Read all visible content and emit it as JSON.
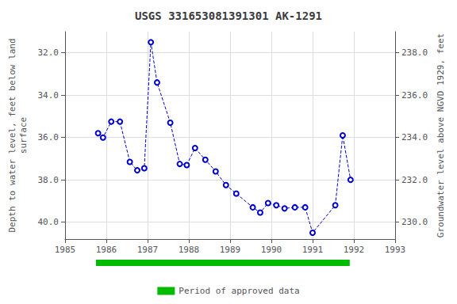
{
  "chart_data": {
    "type": "line",
    "title": "USGS 331653081391301 AK-1291",
    "ylabel": "Depth to water level, feet below land\nsurface",
    "y2label": "Groundwater level above NGVD 1929, feet",
    "x": [
      1985.8,
      1985.92,
      1986.12,
      1986.33,
      1986.57,
      1986.75,
      1986.92,
      1987.08,
      1987.23,
      1987.55,
      1987.78,
      1987.95,
      1988.15,
      1988.4,
      1988.65,
      1988.9,
      1989.15,
      1989.55,
      1989.73,
      1989.92,
      1990.12,
      1990.32,
      1990.57,
      1990.82,
      1991.0,
      1991.55,
      1991.73,
      1991.92
    ],
    "series": [
      {
        "color": "#0000CC",
        "marker": "circle",
        "line_style": "dashed",
        "values": [
          35.8,
          36.0,
          35.25,
          35.25,
          37.15,
          37.55,
          37.45,
          31.5,
          33.4,
          35.3,
          37.25,
          37.3,
          36.5,
          37.05,
          37.6,
          38.25,
          38.65,
          39.3,
          39.55,
          39.1,
          39.2,
          39.35,
          39.3,
          39.3,
          40.5,
          39.2,
          35.9,
          38.0
        ]
      }
    ],
    "periods": [
      {
        "name": "Period of approved data",
        "color": "#00BB00",
        "start": 1985.75,
        "end": 1991.9
      }
    ],
    "xlim": [
      1985,
      1993
    ],
    "xticks": [
      1985,
      1986,
      1987,
      1988,
      1989,
      1990,
      1991,
      1992,
      1993
    ],
    "ylim": [
      40.8,
      31.0
    ],
    "yticks": [
      {
        "value": 32.0,
        "label": "32.0"
      },
      {
        "value": 34.0,
        "label": "34.0"
      },
      {
        "value": 36.0,
        "label": "36.0"
      },
      {
        "value": 38.0,
        "label": "38.0"
      },
      {
        "value": 40.0,
        "label": "40.0"
      }
    ],
    "y2lim": [
      229.2,
      239.0
    ],
    "y2ticks": [
      {
        "value": 230.0,
        "label": "230.0"
      },
      {
        "value": 232.0,
        "label": "232.0"
      },
      {
        "value": 234.0,
        "label": "234.0"
      },
      {
        "value": 236.0,
        "label": "236.0"
      },
      {
        "value": 238.0,
        "label": "238.0"
      }
    ],
    "grid": true,
    "legend": "bottom"
  }
}
